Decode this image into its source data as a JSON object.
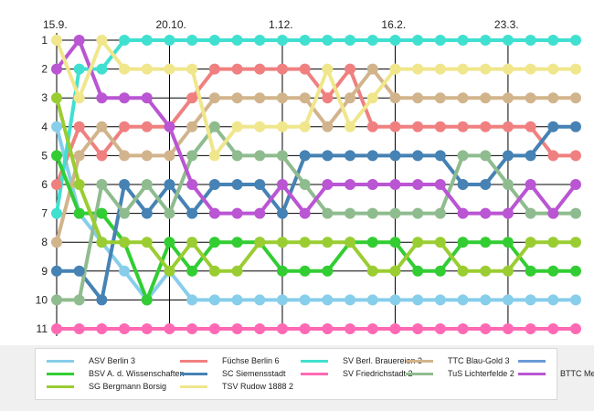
{
  "chart_data": {
    "type": "line",
    "title": "",
    "xlabel": "",
    "ylabel": "",
    "x_tick_labels": [
      {
        "index": 0,
        "label": "15.9."
      },
      {
        "index": 5,
        "label": "20.10."
      },
      {
        "index": 10,
        "label": "1.12."
      },
      {
        "index": 15,
        "label": "16.2."
      },
      {
        "index": 20,
        "label": "23.3."
      }
    ],
    "y_ticks": [
      1,
      2,
      3,
      4,
      5,
      6,
      7,
      8,
      9,
      10,
      11
    ],
    "ylim": [
      1,
      11
    ],
    "y_inverted": true,
    "grid": true,
    "rounds": 24,
    "series": [
      {
        "name": "ASV Berlin 3",
        "color": "#87ceeb",
        "values": [
          4,
          7,
          8,
          9,
          10,
          9,
          10,
          10,
          10,
          10,
          10,
          10,
          10,
          10,
          10,
          10,
          10,
          10,
          10,
          10,
          10,
          10,
          10,
          10
        ]
      },
      {
        "name": "Füchse Berlin 6",
        "color": "#f08080",
        "values": [
          6,
          4,
          5,
          4,
          4,
          4,
          3,
          2,
          2,
          2,
          2,
          2,
          3,
          2,
          4,
          4,
          4,
          4,
          4,
          4,
          4,
          4,
          5,
          5
        ]
      },
      {
        "name": "SV Berl. Brauereien 3",
        "color": "#40e0d0",
        "values": [
          7,
          2,
          2,
          1,
          1,
          1,
          1,
          1,
          1,
          1,
          1,
          1,
          1,
          1,
          1,
          1,
          1,
          1,
          1,
          1,
          1,
          1,
          1,
          1
        ]
      },
      {
        "name": "TTC Blau-Gold 3",
        "color": "#d2b48c",
        "values": [
          8,
          5,
          4,
          5,
          5,
          5,
          4,
          3,
          3,
          3,
          3,
          3,
          4,
          3,
          2,
          3,
          3,
          3,
          3,
          3,
          3,
          3,
          3,
          3
        ]
      },
      {
        "name": "",
        "color": "#6b9bd8",
        "values": []
      },
      {
        "name": "BSV A. d. Wissenschaften",
        "color": "#32cd32",
        "values": [
          5,
          7,
          7,
          8,
          10,
          8,
          9,
          8,
          8,
          8,
          9,
          9,
          9,
          8,
          8,
          8,
          9,
          9,
          8,
          8,
          8,
          9,
          9,
          9
        ]
      },
      {
        "name": "SC Siemensstadt",
        "color": "#4682b4",
        "values": [
          9,
          9,
          10,
          6,
          7,
          6,
          7,
          6,
          6,
          6,
          7,
          5,
          5,
          5,
          5,
          5,
          5,
          5,
          6,
          6,
          5,
          5,
          4,
          4
        ]
      },
      {
        "name": "SV Friedrichstadt 2",
        "color": "#ff69b4",
        "values": [
          11,
          11,
          11,
          11,
          11,
          11,
          11,
          11,
          11,
          11,
          11,
          11,
          11,
          11,
          11,
          11,
          11,
          11,
          11,
          11,
          11,
          11,
          11,
          11
        ]
      },
      {
        "name": "TuS Lichterfelde 2",
        "color": "#8fbc8f",
        "values": [
          10,
          10,
          6,
          7,
          6,
          7,
          5,
          4,
          5,
          5,
          5,
          6,
          7,
          7,
          7,
          7,
          7,
          7,
          5,
          5,
          6,
          7,
          7,
          7
        ]
      },
      {
        "name": "BTTC Meteor",
        "color": "#ba55d3",
        "values": [
          2,
          1,
          3,
          3,
          3,
          4,
          6,
          7,
          7,
          7,
          6,
          7,
          6,
          6,
          6,
          6,
          6,
          6,
          7,
          7,
          7,
          6,
          7,
          6
        ]
      },
      {
        "name": "SG Bergmann Borsig",
        "color": "#9acd32",
        "values": [
          3,
          6,
          8,
          8,
          8,
          9,
          8,
          9,
          9,
          8,
          8,
          8,
          8,
          8,
          9,
          9,
          8,
          8,
          9,
          9,
          9,
          8,
          8,
          8
        ]
      },
      {
        "name": "TSV Rudow 1888 2",
        "color": "#f0e68c",
        "values": [
          1,
          3,
          1,
          2,
          2,
          2,
          2,
          5,
          4,
          4,
          4,
          4,
          2,
          4,
          3,
          2,
          2,
          2,
          2,
          2,
          2,
          2,
          2,
          2
        ]
      }
    ]
  }
}
